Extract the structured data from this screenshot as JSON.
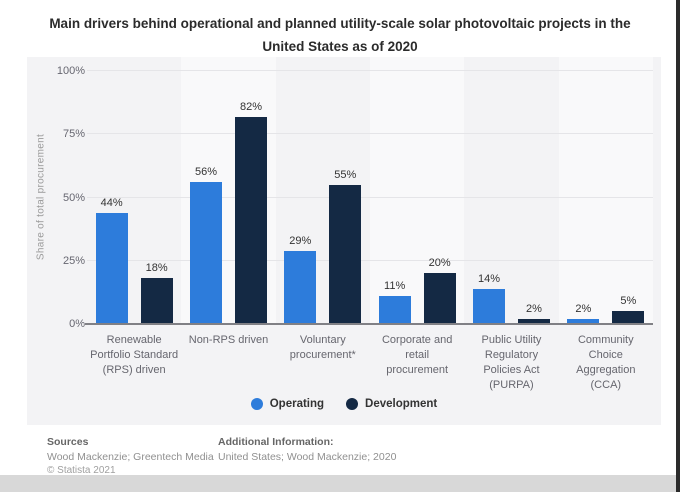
{
  "title": "Main drivers behind operational and planned utility-scale solar photovoltaic projects in the United States as of 2020",
  "chart_data": {
    "type": "bar",
    "title": "Main drivers behind operational and planned utility-scale solar photovoltaic projects in the United States as of 2020",
    "ylabel": "Share of total procurement",
    "xlabel": "",
    "ylim": [
      0,
      100
    ],
    "ytick_values": [
      0,
      25,
      50,
      75,
      100
    ],
    "ytick_labels": [
      "0%",
      "25%",
      "50%",
      "75%",
      "100%"
    ],
    "grid": true,
    "legend_position": "bottom",
    "value_suffix": "%",
    "categories": [
      "Renewable Portfolio Standard (RPS) driven",
      "Non-RPS driven",
      "Voluntary procurement*",
      "Corporate and retail procurement",
      "Public Utility Regulatory Policies Act (PURPA)",
      "Community Choice Aggregation (CCA)"
    ],
    "series": [
      {
        "name": "Operating",
        "color": "#2d7cdb",
        "values": [
          44,
          56,
          29,
          11,
          14,
          2
        ]
      },
      {
        "name": "Development",
        "color": "#142944",
        "values": [
          18,
          82,
          55,
          20,
          2,
          5
        ]
      }
    ]
  },
  "colors": {
    "operating": "#2d7cdb",
    "development": "#142944",
    "panel_background": "#f3f3f5",
    "stripe_light": "#f9f9fa",
    "gridline": "#e5e5e8",
    "axis_line": "#808085"
  },
  "footer": {
    "sources_label": "Sources",
    "sources": "Wood Mackenzie; Greentech Media",
    "copyright": "© Statista 2021",
    "additional_label": "Additional Information:",
    "additional": "United States; Wood Mackenzie; 2020"
  }
}
